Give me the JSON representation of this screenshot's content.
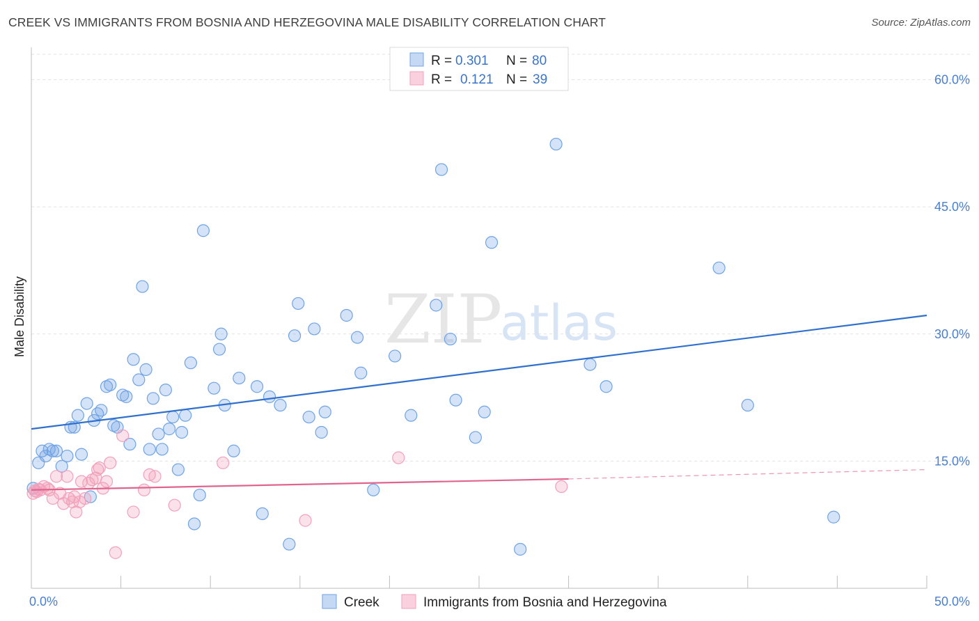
{
  "title": "CREEK VS IMMIGRANTS FROM BOSNIA AND HERZEGOVINA MALE DISABILITY CORRELATION CHART",
  "source": "Source: ZipAtlas.com",
  "watermark": {
    "zip": "ZIP",
    "atlas": "atlas"
  },
  "chart_data": {
    "type": "scatter",
    "title": "CREEK VS IMMIGRANTS FROM BOSNIA AND HERZEGOVINA MALE DISABILITY CORRELATION CHART",
    "xlabel": "",
    "ylabel": "Male Disability",
    "xlim": [
      0,
      50
    ],
    "ylim": [
      0,
      63
    ],
    "x_tick_labels": [
      "0.0%",
      "50.0%"
    ],
    "y_ticks": [
      15,
      30,
      45,
      60
    ],
    "y_tick_labels": [
      "15.0%",
      "30.0%",
      "45.0%",
      "60.0%"
    ],
    "grid": true,
    "legend_position": "top-center",
    "stats": [
      {
        "series": "Creek",
        "r_label": "R =",
        "r_value": "0.301",
        "n_label": "N =",
        "n_value": "80"
      },
      {
        "series": "Immigrants from Bosnia and Herzegovina",
        "r_label": "R =",
        "r_value": "0.121",
        "n_label": "N =",
        "n_value": "39"
      }
    ],
    "series": [
      {
        "name": "Creek",
        "color": "#6fa3e6",
        "line_color": "#2f6fce",
        "trend": {
          "x0": 0,
          "y0": 18.8,
          "x1": 50,
          "y1": 32.2
        },
        "points": [
          [
            0.1,
            11.8
          ],
          [
            0.4,
            14.8
          ],
          [
            0.6,
            16.2
          ],
          [
            0.8,
            15.6
          ],
          [
            1.0,
            16.4
          ],
          [
            1.2,
            16.2
          ],
          [
            1.4,
            16.2
          ],
          [
            1.7,
            14.4
          ],
          [
            2.0,
            15.6
          ],
          [
            2.2,
            19.0
          ],
          [
            2.4,
            19.0
          ],
          [
            2.6,
            20.4
          ],
          [
            2.8,
            15.8
          ],
          [
            3.1,
            21.8
          ],
          [
            3.3,
            10.8
          ],
          [
            3.5,
            19.8
          ],
          [
            3.7,
            20.6
          ],
          [
            3.9,
            21.0
          ],
          [
            4.2,
            23.8
          ],
          [
            4.4,
            24.0
          ],
          [
            4.6,
            19.2
          ],
          [
            4.8,
            19.0
          ],
          [
            5.1,
            22.8
          ],
          [
            5.3,
            22.6
          ],
          [
            5.5,
            17.0
          ],
          [
            5.7,
            27.0
          ],
          [
            6.0,
            24.6
          ],
          [
            6.2,
            35.6
          ],
          [
            6.4,
            25.8
          ],
          [
            6.6,
            16.4
          ],
          [
            6.8,
            22.4
          ],
          [
            7.1,
            18.2
          ],
          [
            7.3,
            16.4
          ],
          [
            7.5,
            23.4
          ],
          [
            7.7,
            18.8
          ],
          [
            7.9,
            20.2
          ],
          [
            8.2,
            14.0
          ],
          [
            8.4,
            18.4
          ],
          [
            8.6,
            20.4
          ],
          [
            8.9,
            26.6
          ],
          [
            9.1,
            7.6
          ],
          [
            9.4,
            11.0
          ],
          [
            9.6,
            42.2
          ],
          [
            10.2,
            23.6
          ],
          [
            10.5,
            28.2
          ],
          [
            10.6,
            30.0
          ],
          [
            10.8,
            21.6
          ],
          [
            11.3,
            16.2
          ],
          [
            11.6,
            24.8
          ],
          [
            12.6,
            23.8
          ],
          [
            12.9,
            8.8
          ],
          [
            13.3,
            22.6
          ],
          [
            13.9,
            21.6
          ],
          [
            14.4,
            5.2
          ],
          [
            14.7,
            29.8
          ],
          [
            14.9,
            33.6
          ],
          [
            15.5,
            20.2
          ],
          [
            15.8,
            30.6
          ],
          [
            16.2,
            18.4
          ],
          [
            16.4,
            20.8
          ],
          [
            17.6,
            32.2
          ],
          [
            18.2,
            29.6
          ],
          [
            18.4,
            25.4
          ],
          [
            19.1,
            11.6
          ],
          [
            20.3,
            27.4
          ],
          [
            21.2,
            20.4
          ],
          [
            22.6,
            33.4
          ],
          [
            22.9,
            49.4
          ],
          [
            23.4,
            29.4
          ],
          [
            23.7,
            22.2
          ],
          [
            24.8,
            17.8
          ],
          [
            25.3,
            20.8
          ],
          [
            25.7,
            40.8
          ],
          [
            27.3,
            4.6
          ],
          [
            29.3,
            52.4
          ],
          [
            31.2,
            26.4
          ],
          [
            32.1,
            23.8
          ],
          [
            38.4,
            37.8
          ],
          [
            40.0,
            21.6
          ],
          [
            44.8,
            8.4
          ]
        ]
      },
      {
        "name": "Immigrants from Bosnia and Herzegovina",
        "color": "#f2a0bb",
        "line_color": "#e0648e",
        "trend": {
          "x0": 0,
          "y0": 11.6,
          "x1": 30,
          "y1": 12.9,
          "dash_to_x": 50,
          "dash_to_y": 14.0
        },
        "points": [
          [
            0.1,
            11.2
          ],
          [
            0.3,
            11.4
          ],
          [
            0.5,
            11.6
          ],
          [
            0.7,
            12.0
          ],
          [
            0.9,
            11.8
          ],
          [
            1.0,
            11.6
          ],
          [
            1.2,
            10.6
          ],
          [
            1.4,
            13.2
          ],
          [
            1.6,
            11.2
          ],
          [
            1.8,
            10.0
          ],
          [
            2.0,
            13.2
          ],
          [
            2.1,
            10.6
          ],
          [
            2.3,
            10.2
          ],
          [
            2.4,
            10.8
          ],
          [
            2.5,
            9.0
          ],
          [
            2.7,
            10.2
          ],
          [
            2.8,
            12.6
          ],
          [
            3.0,
            10.6
          ],
          [
            3.2,
            12.4
          ],
          [
            3.4,
            12.8
          ],
          [
            3.6,
            13.0
          ],
          [
            3.7,
            14.0
          ],
          [
            3.8,
            14.2
          ],
          [
            4.0,
            11.8
          ],
          [
            4.2,
            12.6
          ],
          [
            4.4,
            14.8
          ],
          [
            4.7,
            4.2
          ],
          [
            5.1,
            18.0
          ],
          [
            5.7,
            9.0
          ],
          [
            6.3,
            11.6
          ],
          [
            6.6,
            13.4
          ],
          [
            6.9,
            13.2
          ],
          [
            8.0,
            9.8
          ],
          [
            10.7,
            14.8
          ],
          [
            15.3,
            8.0
          ],
          [
            20.5,
            15.4
          ],
          [
            29.6,
            12.0
          ],
          [
            0.2,
            11.5
          ],
          [
            0.4,
            11.7
          ]
        ]
      }
    ]
  }
}
